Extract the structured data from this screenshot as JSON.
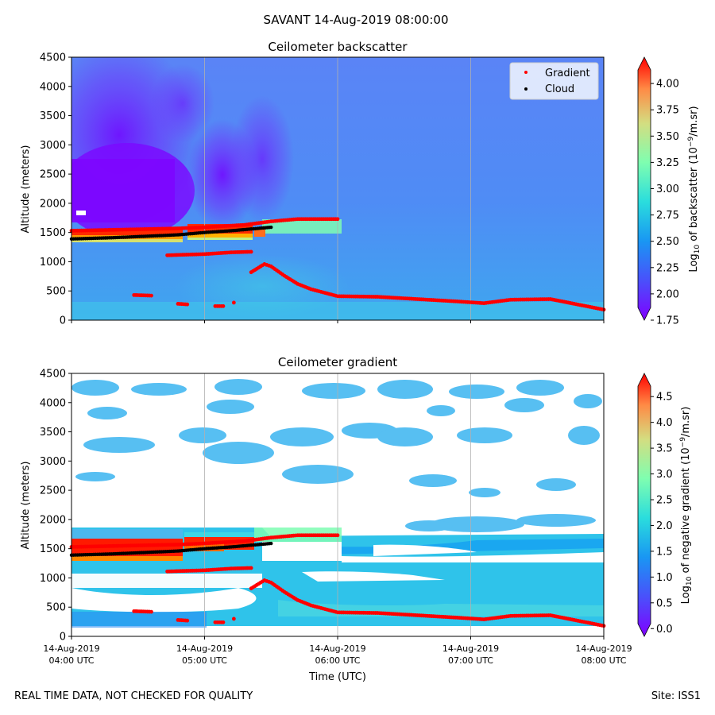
{
  "suptitle": "SAVANT 14-Aug-2019 08:00:00",
  "footer_left": "REAL TIME DATA, NOT CHECKED FOR QUALITY",
  "footer_right": "Site: ISS1",
  "chart_data": [
    {
      "type": "heatmap",
      "title": "Ceilometer backscatter",
      "ylabel": "Altitude (meters)",
      "ylim": [
        0,
        4500
      ],
      "yticks": [
        0,
        500,
        1000,
        1500,
        2000,
        2500,
        3000,
        3500,
        4000,
        4500
      ],
      "ytick_labels": [
        "0",
        "500",
        "1000",
        "1500",
        "2000",
        "2500",
        "3000",
        "3500",
        "4000",
        "4500"
      ],
      "xlim_hours_utc": [
        4.0,
        8.0
      ],
      "grid_x": true,
      "legend": {
        "location": "top-right",
        "entries": [
          "Gradient",
          "Cloud"
        ]
      },
      "colorbar": {
        "label_prefix": "Log",
        "label_sub": "10",
        "label_mid": " of backscatter (10",
        "label_sup": "−9",
        "label_suffix": "/m.sr)",
        "range": [
          1.75,
          4.25
        ],
        "ticks": [
          1.75,
          2.0,
          2.25,
          2.5,
          2.75,
          3.0,
          3.25,
          3.5,
          3.75,
          4.0
        ],
        "tick_labels": [
          "1.75",
          "2.00",
          "2.25",
          "2.50",
          "2.75",
          "3.00",
          "3.25",
          "3.50",
          "3.75",
          "4.00"
        ],
        "extend": "both"
      },
      "gradient_points": {
        "name": "Gradient",
        "color": "#ff0000",
        "segments": [
          {
            "x": [
              4.0,
              4.4,
              4.8,
              5.0,
              5.3,
              5.5,
              5.7,
              6.0
            ],
            "y": [
              1530,
              1550,
              1570,
              1590,
              1630,
              1690,
              1730,
              1730
            ]
          },
          {
            "x": [
              4.72,
              4.85,
              5.0,
              5.2,
              5.35
            ],
            "y": [
              1110,
              1120,
              1130,
              1160,
              1170
            ]
          },
          {
            "x": [
              5.35,
              5.45,
              5.5,
              5.6,
              5.7,
              5.8,
              6.0,
              6.3,
              6.6,
              6.9,
              7.1,
              7.3,
              7.6,
              8.0
            ],
            "y": [
              820,
              960,
              920,
              760,
              620,
              530,
              410,
              400,
              360,
              320,
              290,
              350,
              360,
              180
            ]
          },
          {
            "x": [
              4.47,
              4.6
            ],
            "y": [
              430,
              420
            ]
          },
          {
            "x": [
              4.8,
              4.87
            ],
            "y": [
              280,
              270
            ]
          },
          {
            "x": [
              5.08,
              5.14
            ],
            "y": [
              240,
              240
            ]
          },
          {
            "x": [
              5.22
            ],
            "y": [
              300
            ]
          }
        ]
      },
      "cloud_points": {
        "name": "Cloud",
        "color": "#000000",
        "segments": [
          {
            "x": [
              4.0,
              4.3,
              4.6,
              4.8,
              5.0,
              5.2,
              5.35,
              5.4,
              5.5
            ],
            "y": [
              1390,
              1410,
              1440,
              1460,
              1500,
              1530,
              1560,
              1570,
              1590
            ]
          }
        ]
      }
    },
    {
      "type": "heatmap",
      "title": "Ceilometer gradient",
      "ylabel": "Altitude (meters)",
      "xlabel": "Time (UTC)",
      "ylim": [
        0,
        4500
      ],
      "yticks": [
        0,
        500,
        1000,
        1500,
        2000,
        2500,
        3000,
        3500,
        4000,
        4500
      ],
      "ytick_labels": [
        "0",
        "500",
        "1000",
        "1500",
        "2000",
        "2500",
        "3000",
        "3500",
        "4000",
        "4500"
      ],
      "xlim_hours_utc": [
        4.0,
        8.0
      ],
      "xticks_hours_utc": [
        4,
        5,
        6,
        7,
        8
      ],
      "xtick_labels_line1": [
        "14-Aug-2019",
        "14-Aug-2019",
        "14-Aug-2019",
        "14-Aug-2019",
        "14-Aug-2019"
      ],
      "xtick_labels_line2": [
        "04:00 UTC",
        "05:00 UTC",
        "06:00 UTC",
        "07:00 UTC",
        "08:00 UTC"
      ],
      "grid_x": true,
      "colorbar": {
        "label_prefix": "Log",
        "label_sub": "10",
        "label_mid": " of negative gradient (10",
        "label_sup": "−9",
        "label_suffix": "/m.sr)",
        "range": [
          -0.15,
          4.95
        ],
        "ticks": [
          0.0,
          0.5,
          1.0,
          1.5,
          2.0,
          2.5,
          3.0,
          3.5,
          4.0,
          4.5
        ],
        "tick_labels": [
          "0.0",
          "0.5",
          "1.0",
          "1.5",
          "2.0",
          "2.5",
          "3.0",
          "3.5",
          "4.0",
          "4.5"
        ],
        "extend": "both"
      }
    }
  ]
}
